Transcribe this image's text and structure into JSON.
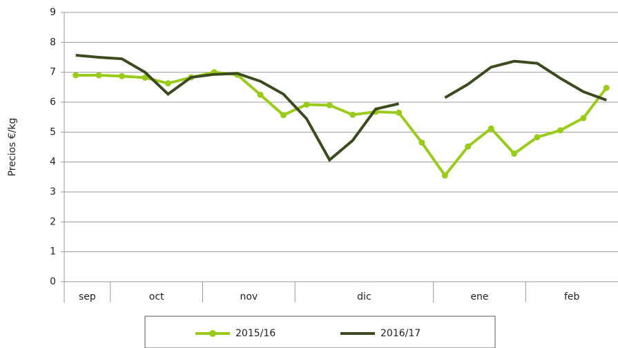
{
  "chart_data": {
    "type": "line",
    "y_label": "Precios €/kg",
    "categories": [
      "sep",
      null,
      "oct",
      null,
      null,
      null,
      "nov",
      null,
      null,
      null,
      "dic",
      null,
      null,
      null,
      null,
      null,
      "ene",
      null,
      null,
      null,
      "feb",
      null,
      null,
      null
    ],
    "series": [
      {
        "name": "2015/16",
        "color": "#99cc1a",
        "markers": true,
        "values": [
          6.9,
          6.9,
          6.87,
          6.82,
          6.63,
          6.83,
          7.0,
          6.92,
          6.25,
          5.57,
          5.92,
          5.9,
          5.58,
          5.68,
          5.65,
          4.65,
          3.55,
          4.52,
          5.12,
          4.28,
          4.83,
          5.06,
          5.47,
          6.48
        ]
      },
      {
        "name": "2016/17",
        "color": "#3b4a1f",
        "markers": false,
        "values": [
          7.57,
          7.5,
          7.45,
          7.0,
          6.27,
          6.83,
          6.93,
          6.96,
          6.7,
          6.27,
          5.45,
          4.07,
          4.72,
          5.77,
          5.95,
          null,
          6.15,
          6.6,
          7.17,
          7.37,
          7.3,
          6.8,
          6.35,
          6.07
        ]
      }
    ],
    "ylim": [
      0,
      9
    ],
    "yticks": [
      0,
      1,
      2,
      3,
      4,
      5,
      6,
      7,
      8,
      9
    ],
    "grid": true,
    "legend": "bottom"
  }
}
